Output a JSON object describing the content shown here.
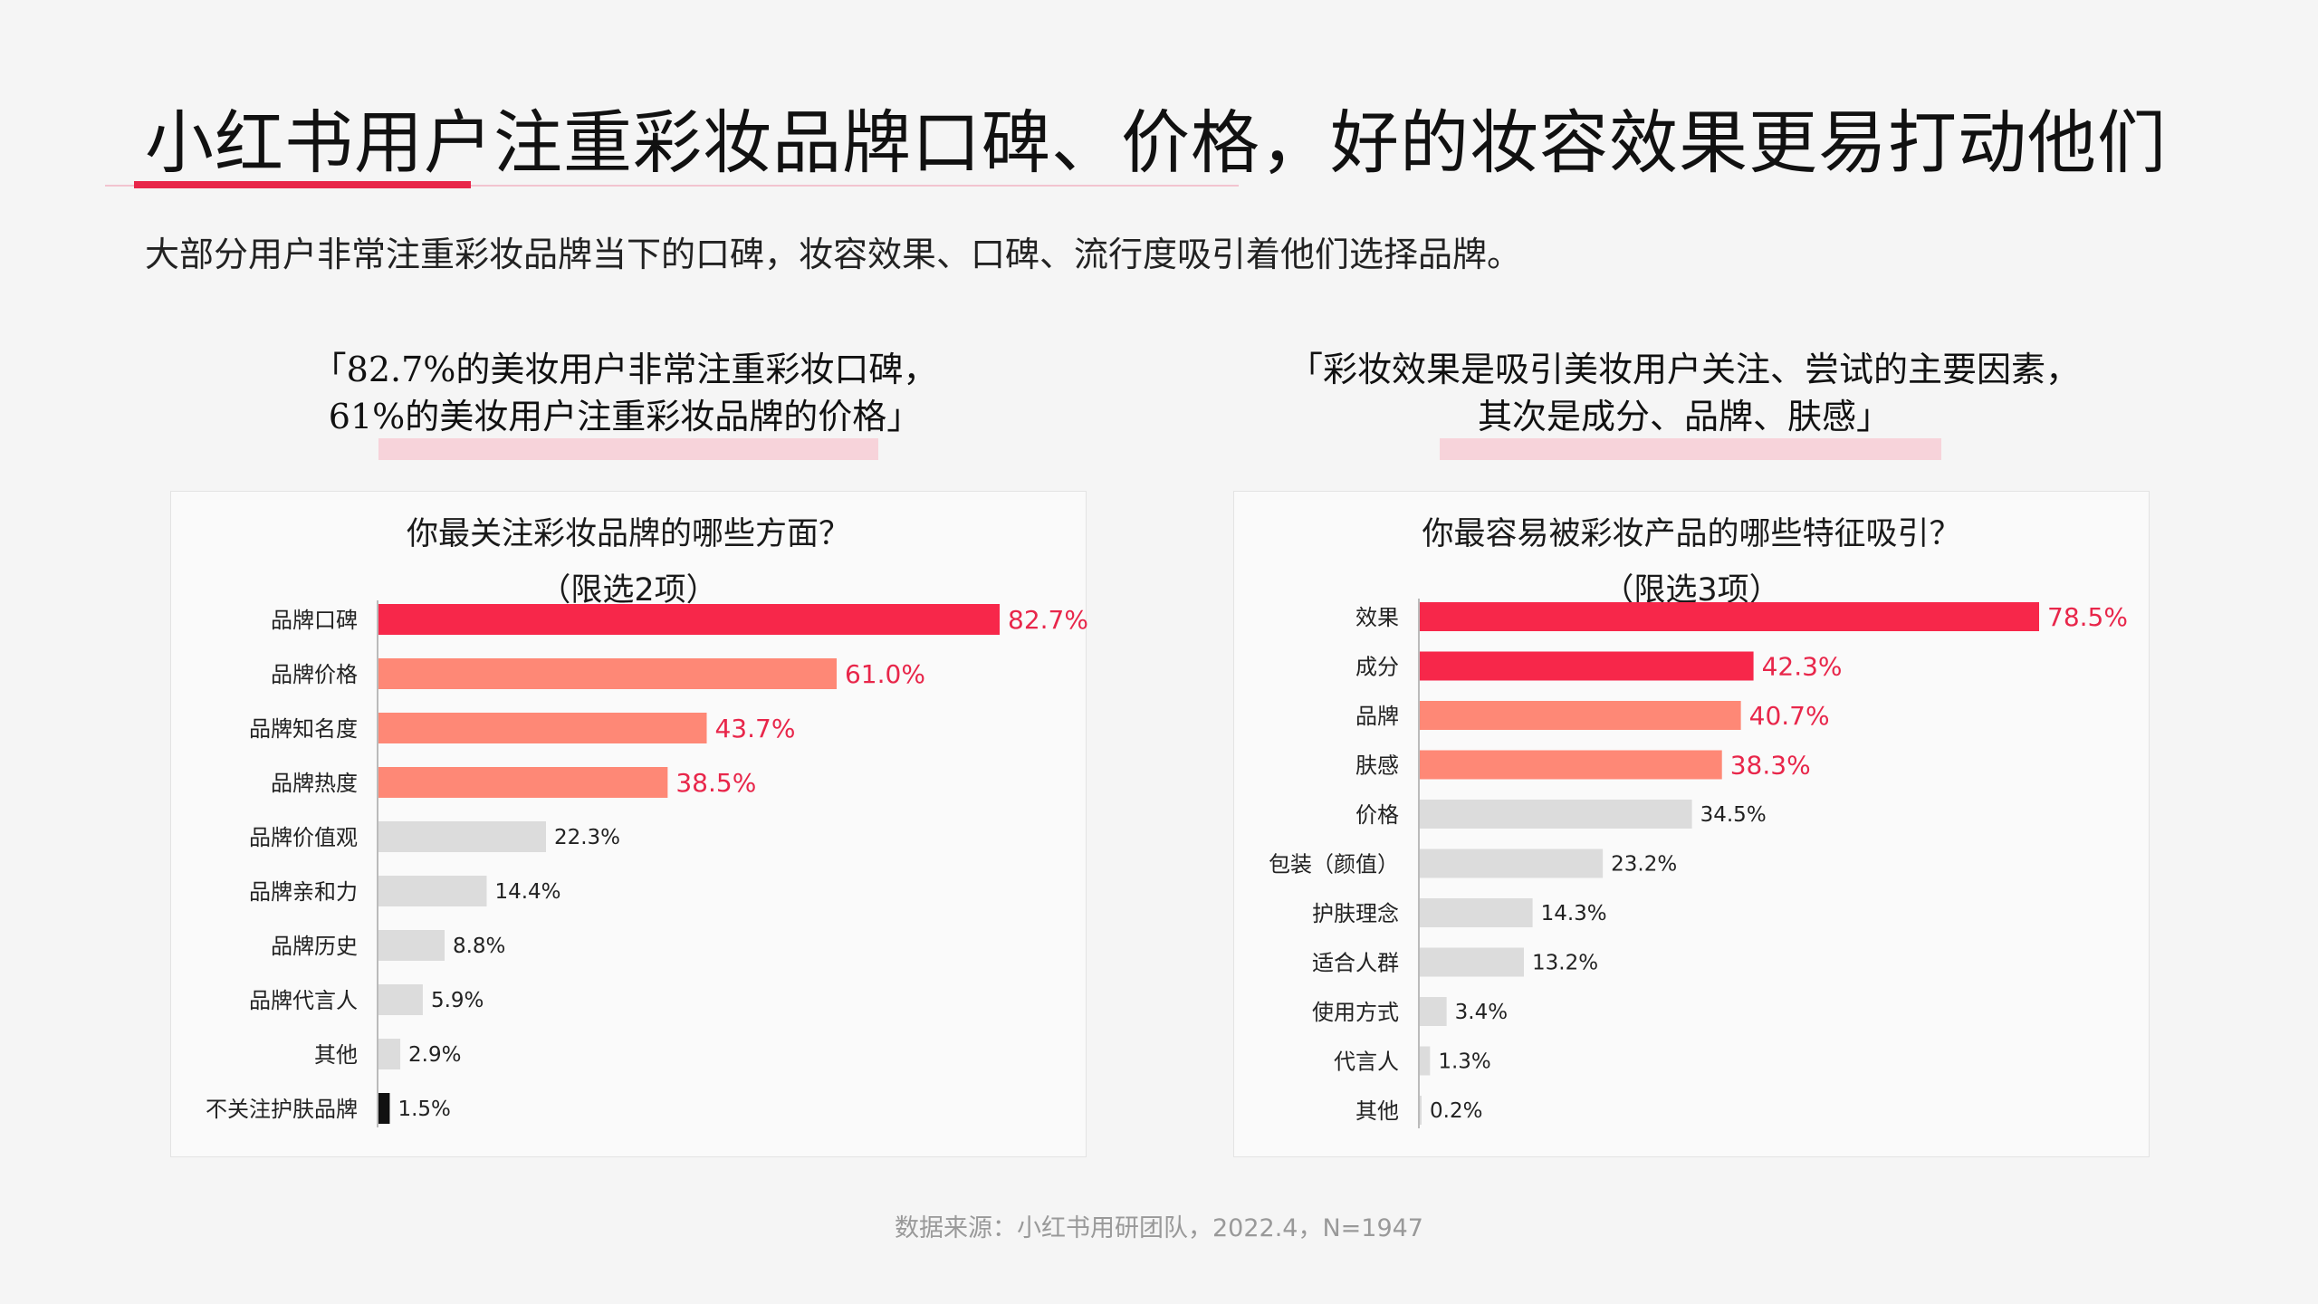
{
  "page": {
    "title": "小红书用户注重彩妆品牌口碑、价格，好的妆容效果更易打动他们",
    "subtitle": "大部分用户非常注重彩妆品牌当下的口碑，妆容效果、口碑、流行度吸引着他们选择品牌。",
    "source": "数据来源：小红书用研团队，2022.4，N=1947"
  },
  "left": {
    "quote_line1": "「82.7%的美妆用户非常注重彩妆口碑，",
    "quote_line2": "61%的美妆用户注重彩妆品牌的价格」",
    "question_line1": "你最关注彩妆品牌的哪些方面？",
    "question_line2": "（限选2项）"
  },
  "right": {
    "quote_line1": "「彩妆效果是吸引美妆用户关注、尝试的主要因素，",
    "quote_line2": "其次是成分、品牌、肤感」",
    "question_line1": "你最容易被彩妆产品的哪些特征吸引？",
    "question_line2": "（限选3项）"
  },
  "colors": {
    "top": "#f7274a",
    "high": "#fe8876",
    "normal": "#dcdcdc",
    "low": "#111111",
    "highlight_label": "#e8264a",
    "normal_label": "#222222"
  },
  "chart_data": [
    {
      "type": "bar",
      "orientation": "horizontal",
      "unit": "%",
      "categories": [
        "品牌口碑",
        "品牌价格",
        "品牌知名度",
        "品牌热度",
        "品牌价值观",
        "品牌亲和力",
        "品牌历史",
        "品牌代言人",
        "其他",
        "不关注护肤品牌"
      ],
      "values": [
        82.7,
        61.0,
        43.7,
        38.5,
        22.3,
        14.4,
        8.8,
        5.9,
        2.9,
        1.5
      ],
      "labels": [
        "82.7%",
        "61.0%",
        "43.7%",
        "38.5%",
        "22.3%",
        "14.4%",
        "8.8%",
        "5.9%",
        "2.9%",
        "1.5%"
      ],
      "color_keys": [
        "top",
        "high",
        "high",
        "high",
        "normal",
        "normal",
        "normal",
        "normal",
        "normal",
        "low"
      ],
      "highlight_label": [
        true,
        true,
        true,
        true,
        false,
        false,
        false,
        false,
        false,
        false
      ],
      "xlim": [
        0,
        82.7
      ],
      "grid": false
    },
    {
      "type": "bar",
      "orientation": "horizontal",
      "unit": "%",
      "categories": [
        "效果",
        "成分",
        "品牌",
        "肤感",
        "价格",
        "包装（颜值）",
        "护肤理念",
        "适合人群",
        "使用方式",
        "代言人",
        "其他"
      ],
      "values": [
        78.5,
        42.3,
        40.7,
        38.3,
        34.5,
        23.2,
        14.3,
        13.2,
        3.4,
        1.3,
        0.2
      ],
      "labels": [
        "78.5%",
        "42.3%",
        "40.7%",
        "38.3%",
        "34.5%",
        "23.2%",
        "14.3%",
        "13.2%",
        "3.4%",
        "1.3%",
        "0.2%"
      ],
      "color_keys": [
        "top",
        "top",
        "high",
        "high",
        "normal",
        "normal",
        "normal",
        "normal",
        "normal",
        "normal",
        "normal"
      ],
      "highlight_label": [
        true,
        true,
        true,
        true,
        false,
        false,
        false,
        false,
        false,
        false,
        false
      ],
      "xlim": [
        0,
        78.5
      ],
      "grid": false
    }
  ]
}
